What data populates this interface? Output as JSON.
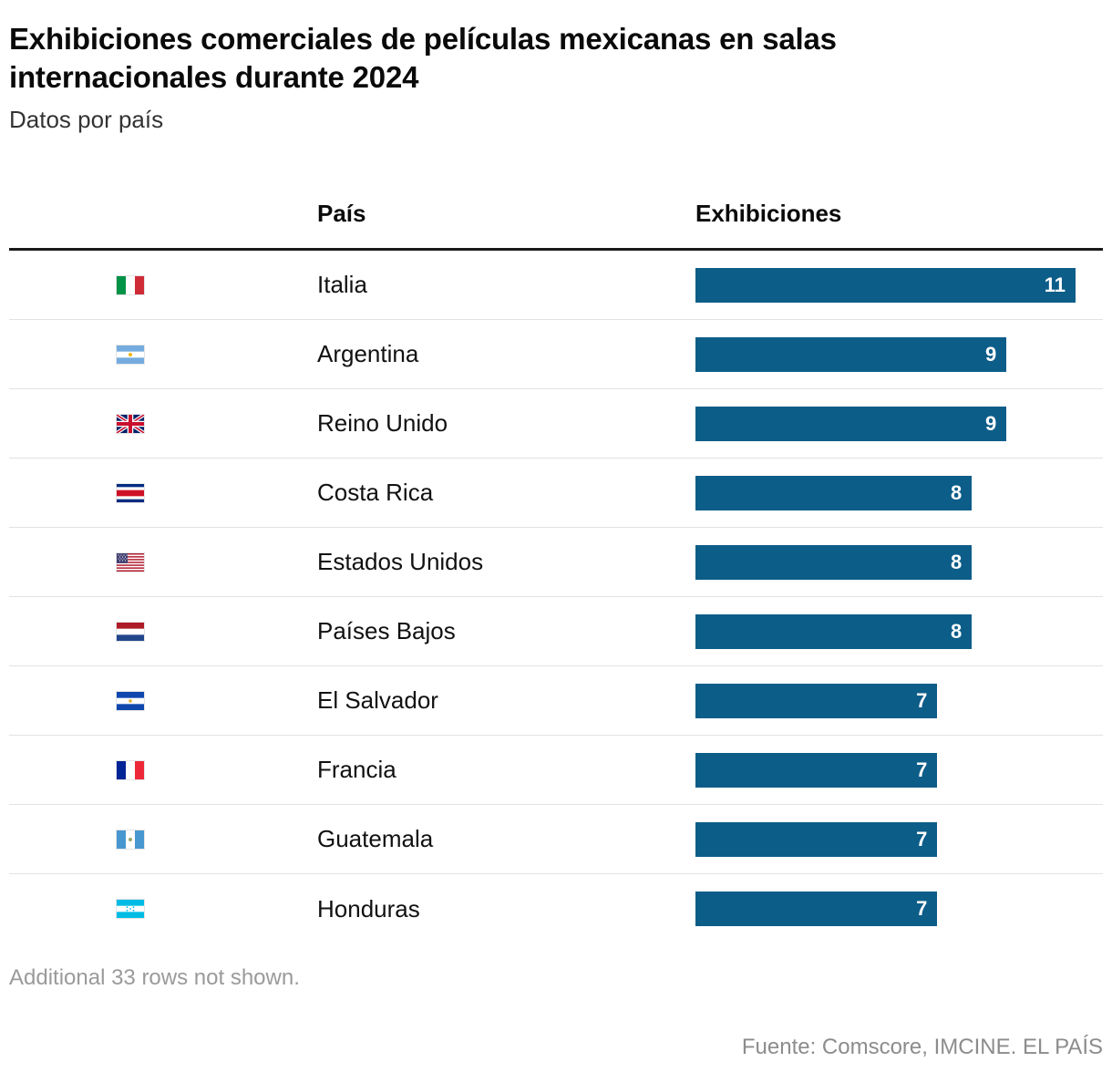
{
  "header": {
    "title": "Exhibiciones comerciales de películas mexicanas en salas internacionales durante 2024",
    "subtitle": "Datos por país"
  },
  "table": {
    "columns": {
      "country": "País",
      "value": "Exhibiciones"
    },
    "max_value": 11,
    "rows": [
      {
        "country": "Italia",
        "value": 11,
        "flag": "italy",
        "flag_icon": "italy-flag-icon"
      },
      {
        "country": "Argentina",
        "value": 9,
        "flag": "argentina",
        "flag_icon": "argentina-flag-icon"
      },
      {
        "country": "Reino Unido",
        "value": 9,
        "flag": "united-kingdom",
        "flag_icon": "united-kingdom-flag-icon"
      },
      {
        "country": "Costa Rica",
        "value": 8,
        "flag": "costa-rica",
        "flag_icon": "costa-rica-flag-icon"
      },
      {
        "country": "Estados Unidos",
        "value": 8,
        "flag": "united-states",
        "flag_icon": "united-states-flag-icon"
      },
      {
        "country": "Países Bajos",
        "value": 8,
        "flag": "netherlands",
        "flag_icon": "netherlands-flag-icon"
      },
      {
        "country": "El Salvador",
        "value": 7,
        "flag": "el-salvador",
        "flag_icon": "el-salvador-flag-icon"
      },
      {
        "country": "Francia",
        "value": 7,
        "flag": "france",
        "flag_icon": "france-flag-icon"
      },
      {
        "country": "Guatemala",
        "value": 7,
        "flag": "guatemala",
        "flag_icon": "guatemala-flag-icon"
      },
      {
        "country": "Honduras",
        "value": 7,
        "flag": "honduras",
        "flag_icon": "honduras-flag-icon"
      }
    ]
  },
  "footer": {
    "note": "Additional 33 rows not shown.",
    "source": "Fuente: Comscore, IMCINE. EL PAÍS"
  },
  "chart_data": {
    "type": "bar",
    "orientation": "horizontal",
    "title": "Exhibiciones comerciales de películas mexicanas en salas internacionales durante 2024",
    "subtitle": "Datos por país",
    "categories": [
      "Italia",
      "Argentina",
      "Reino Unido",
      "Costa Rica",
      "Estados Unidos",
      "Países Bajos",
      "El Salvador",
      "Francia",
      "Guatemala",
      "Honduras"
    ],
    "values": [
      11,
      9,
      9,
      8,
      8,
      8,
      7,
      7,
      7,
      7
    ],
    "xlabel": "Exhibiciones",
    "ylabel": "País",
    "xlim": [
      0,
      11
    ],
    "grid": false,
    "data_labels": true,
    "bar_color": "#0d5d89",
    "note": "Additional 33 rows not shown.",
    "source": "Fuente: Comscore, IMCINE. EL PAÍS"
  }
}
